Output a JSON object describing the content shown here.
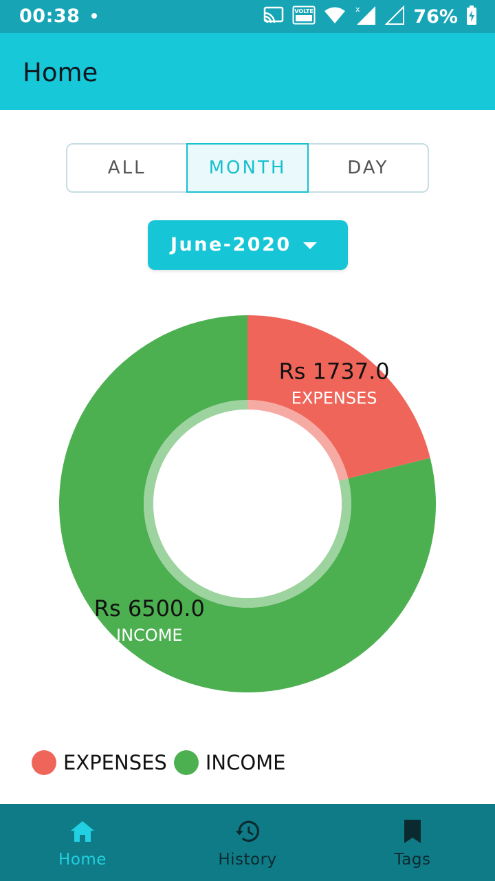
{
  "status_bar": {
    "time": "00:38",
    "battery_percent": "76%",
    "volte_label": "VOLTE",
    "icons": [
      "notification-dot-icon",
      "cast-icon",
      "volte-icon",
      "wifi-icon",
      "signal-icon",
      "signal-empty-icon",
      "battery-charging-icon"
    ]
  },
  "app_bar": {
    "title": "Home"
  },
  "filter": {
    "options": [
      "ALL",
      "MONTH",
      "DAY"
    ],
    "selected": "MONTH"
  },
  "month_selector": {
    "value": "June-2020",
    "icon": "caret-down-icon"
  },
  "colors": {
    "expenses": "#ef6559",
    "income": "#4caf50",
    "accent": "#16c8d8",
    "nav_bg": "#0f7b87"
  },
  "chart_data": {
    "type": "pie",
    "donut": true,
    "slices": [
      {
        "name": "EXPENSES",
        "value": 1737.0,
        "label": "Rs 1737.0"
      },
      {
        "name": "INCOME",
        "value": 6500.0,
        "label": "Rs 6500.0"
      }
    ],
    "legend": [
      "EXPENSES",
      "INCOME"
    ],
    "legend_position": "bottom-left"
  },
  "bottom_nav": {
    "items": [
      {
        "label": "Home",
        "icon": "home-icon",
        "active": true
      },
      {
        "label": "History",
        "icon": "history-icon",
        "active": false
      },
      {
        "label": "Tags",
        "icon": "bookmark-icon",
        "active": false
      }
    ]
  }
}
